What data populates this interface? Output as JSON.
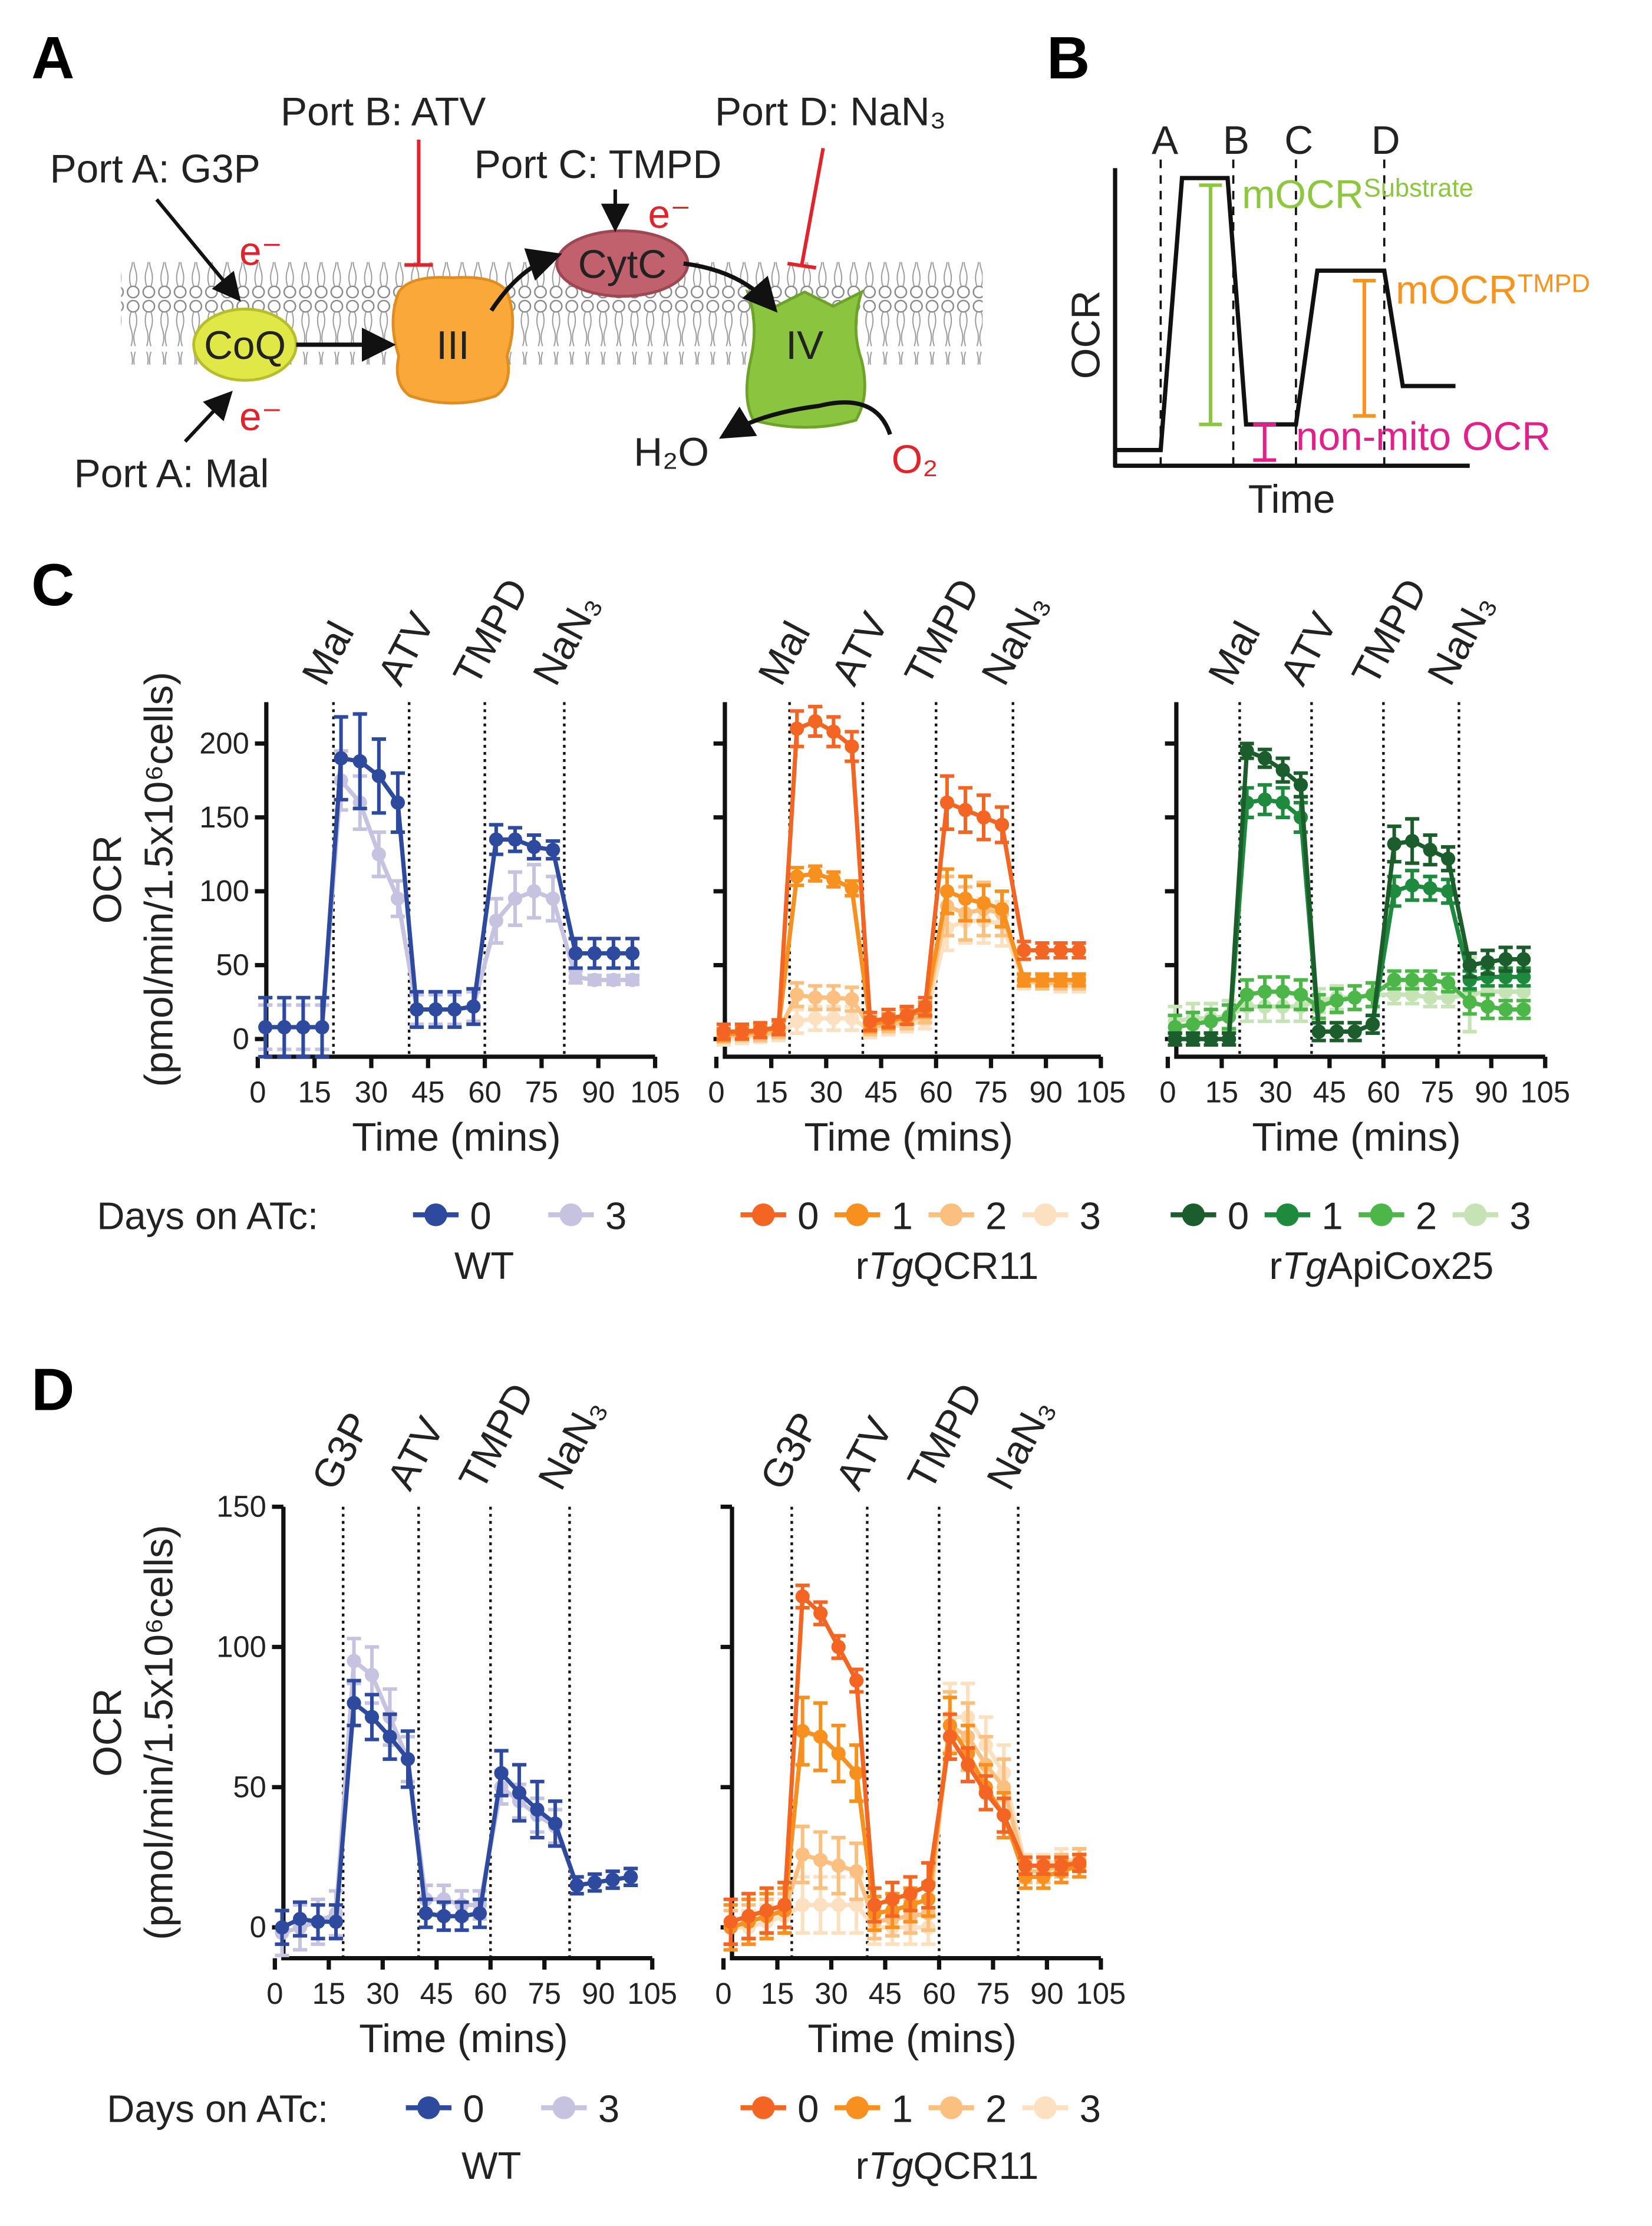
{
  "panel_labels": [
    "A",
    "B",
    "C",
    "D"
  ],
  "diagram_a": {
    "port_a_top": "Port A: G3P",
    "port_b": "Port B: ATV",
    "port_c": "Port C: TMPD",
    "port_d": "Port D: NaN₃",
    "port_a_bottom": "Port A: Mal",
    "electrons": [
      "e⁻",
      "e⁻",
      "e⁻"
    ],
    "complexes": [
      "CoQ",
      "III",
      "CytC",
      "IV"
    ],
    "water": "H₂O",
    "oxygen": "O₂"
  },
  "diagram_b": {
    "injections": [
      "A",
      "B",
      "C",
      "D"
    ],
    "ylabel": "OCR",
    "xlabel": "Time",
    "substrate": {
      "main": "mOCR",
      "sup": "Substrate"
    },
    "tmpd": {
      "main": "mOCR",
      "sup": "TMPD"
    },
    "non_mito": "non-mito OCR"
  },
  "chart_data": [
    {
      "type": "line",
      "ylabel": [
        "OCR",
        "(pmol/min/1.5x10⁶cells)"
      ],
      "xlabel": "Time (mins)",
      "ytick_labels": true,
      "x": [
        2,
        7,
        12,
        17,
        22,
        27,
        32,
        37,
        42,
        47,
        52,
        57,
        63,
        68,
        73,
        78,
        84,
        89,
        94,
        99
      ],
      "xlim": [
        0,
        105
      ],
      "xticks": [
        0,
        15,
        30,
        45,
        60,
        75,
        90,
        105
      ],
      "ylim": [
        -12,
        228
      ],
      "yticks": [
        0,
        50,
        100,
        150,
        200
      ],
      "injections": [
        {
          "label": "Mal",
          "x": 20
        },
        {
          "label": "ATV",
          "x": 40
        },
        {
          "label": "TMPD",
          "x": 60
        },
        {
          "label": "NaN₃",
          "x": 81
        }
      ],
      "legend_title": "Days on ATc:",
      "group_label": [
        "WT"
      ],
      "series": [
        {
          "name": "0",
          "color": "#2e4a9e",
          "values": [
            8,
            8,
            8,
            8,
            190,
            188,
            178,
            160,
            20,
            20,
            20,
            22,
            135,
            135,
            130,
            128,
            58,
            58,
            58,
            58
          ],
          "errors": [
            20,
            20,
            20,
            20,
            28,
            32,
            25,
            20,
            12,
            12,
            12,
            12,
            10,
            8,
            8,
            6,
            10,
            10,
            10,
            10
          ]
        },
        {
          "name": "3",
          "color": "#c5c3e0",
          "values": [
            8,
            8,
            8,
            8,
            175,
            160,
            125,
            95,
            20,
            20,
            20,
            22,
            80,
            95,
            100,
            95,
            42,
            40,
            40,
            40
          ],
          "errors": [
            15,
            15,
            15,
            15,
            20,
            18,
            15,
            12,
            10,
            10,
            10,
            10,
            15,
            18,
            18,
            15,
            4,
            3,
            3,
            3
          ]
        }
      ]
    },
    {
      "type": "line",
      "xlabel": "Time (mins)",
      "ytick_labels": false,
      "x": [
        2,
        7,
        12,
        17,
        22,
        27,
        32,
        37,
        42,
        47,
        52,
        57,
        63,
        68,
        73,
        78,
        84,
        89,
        94,
        99
      ],
      "xlim": [
        0,
        105
      ],
      "xticks": [
        0,
        15,
        30,
        45,
        60,
        75,
        90,
        105
      ],
      "ylim": [
        -12,
        228
      ],
      "yticks": [
        0,
        50,
        100,
        150,
        200
      ],
      "injections": [
        {
          "label": "Mal",
          "x": 20
        },
        {
          "label": "ATV",
          "x": 40
        },
        {
          "label": "TMPD",
          "x": 60
        },
        {
          "label": "NaN₃",
          "x": 81
        }
      ],
      "group_label": [
        "r",
        "Tg",
        "QCR11"
      ],
      "series": [
        {
          "name": "0",
          "color": "#f26522",
          "values": [
            5,
            5,
            6,
            8,
            210,
            215,
            208,
            198,
            12,
            14,
            16,
            22,
            160,
            155,
            150,
            145,
            60,
            60,
            60,
            60
          ],
          "errors": [
            5,
            5,
            5,
            5,
            12,
            10,
            10,
            10,
            6,
            6,
            6,
            6,
            18,
            15,
            15,
            12,
            6,
            5,
            5,
            5
          ]
        },
        {
          "name": "1",
          "color": "#f7901e",
          "values": [
            3,
            4,
            5,
            8,
            110,
            112,
            108,
            102,
            10,
            12,
            15,
            20,
            100,
            95,
            92,
            88,
            40,
            40,
            40,
            40
          ],
          "errors": [
            4,
            4,
            4,
            4,
            6,
            5,
            5,
            5,
            5,
            5,
            5,
            5,
            15,
            15,
            12,
            12,
            4,
            4,
            4,
            4
          ]
        },
        {
          "name": "2",
          "color": "#fbbf7f",
          "values": [
            2,
            3,
            3,
            5,
            30,
            28,
            28,
            27,
            8,
            10,
            12,
            16,
            90,
            85,
            88,
            85,
            40,
            38,
            38,
            38
          ],
          "errors": [
            4,
            4,
            4,
            4,
            8,
            8,
            8,
            8,
            5,
            5,
            5,
            5,
            20,
            18,
            18,
            15,
            4,
            4,
            4,
            4
          ]
        },
        {
          "name": "3",
          "color": "#fde0c0",
          "values": [
            0,
            1,
            2,
            3,
            12,
            14,
            14,
            14,
            6,
            8,
            10,
            12,
            75,
            80,
            80,
            78,
            38,
            38,
            36,
            36
          ],
          "errors": [
            4,
            4,
            4,
            4,
            8,
            8,
            8,
            8,
            5,
            5,
            5,
            5,
            15,
            15,
            15,
            15,
            4,
            4,
            4,
            4
          ]
        }
      ]
    },
    {
      "type": "line",
      "xlabel": "Time (mins)",
      "ytick_labels": false,
      "x": [
        2,
        7,
        12,
        17,
        22,
        27,
        32,
        37,
        42,
        47,
        52,
        57,
        63,
        68,
        73,
        78,
        84,
        89,
        94,
        99
      ],
      "xlim": [
        0,
        105
      ],
      "xticks": [
        0,
        15,
        30,
        45,
        60,
        75,
        90,
        105
      ],
      "ylim": [
        -12,
        228
      ],
      "yticks": [
        0,
        50,
        100,
        150,
        200
      ],
      "injections": [
        {
          "label": "Mal",
          "x": 20
        },
        {
          "label": "ATV",
          "x": 40
        },
        {
          "label": "TMPD",
          "x": 60
        },
        {
          "label": "NaN₃",
          "x": 81
        }
      ],
      "group_label": [
        "r",
        "Tg",
        "ApiCox25"
      ],
      "series": [
        {
          "name": "0",
          "color": "#1b5e2b",
          "values": [
            0,
            0,
            0,
            0,
            195,
            190,
            182,
            172,
            5,
            5,
            5,
            10,
            132,
            134,
            128,
            122,
            50,
            52,
            54,
            54
          ],
          "errors": [
            4,
            4,
            4,
            4,
            5,
            6,
            8,
            8,
            6,
            6,
            6,
            6,
            12,
            15,
            10,
            8,
            8,
            8,
            8,
            8
          ]
        },
        {
          "name": "1",
          "color": "#1e8a3e",
          "values": [
            0,
            0,
            0,
            0,
            160,
            162,
            160,
            150,
            5,
            5,
            5,
            10,
            100,
            104,
            102,
            100,
            40,
            42,
            42,
            42
          ],
          "errors": [
            4,
            4,
            4,
            4,
            10,
            10,
            10,
            10,
            6,
            6,
            6,
            6,
            10,
            10,
            8,
            8,
            6,
            6,
            6,
            6
          ]
        },
        {
          "name": "2",
          "color": "#4cb748",
          "values": [
            8,
            10,
            12,
            15,
            30,
            32,
            32,
            30,
            22,
            26,
            28,
            30,
            40,
            40,
            40,
            38,
            25,
            22,
            20,
            20
          ],
          "errors": [
            8,
            8,
            8,
            8,
            10,
            10,
            10,
            10,
            8,
            8,
            8,
            8,
            6,
            6,
            6,
            6,
            8,
            8,
            6,
            6
          ]
        },
        {
          "name": "3",
          "color": "#c5e3b5",
          "values": [
            12,
            14,
            14,
            16,
            22,
            22,
            22,
            22,
            26,
            28,
            28,
            30,
            30,
            30,
            28,
            28,
            30,
            32,
            32,
            32
          ],
          "errors": [
            10,
            10,
            10,
            10,
            10,
            10,
            10,
            10,
            8,
            8,
            8,
            8,
            6,
            6,
            6,
            6,
            25,
            10,
            10,
            10
          ]
        }
      ]
    },
    {
      "type": "line",
      "ylabel": [
        "OCR",
        "(pmol/min/1.5x10⁶cells)"
      ],
      "xlabel": "Time (mins)",
      "ytick_labels": true,
      "x": [
        2,
        7,
        12,
        17,
        22,
        27,
        32,
        37,
        42,
        47,
        52,
        57,
        63,
        68,
        73,
        78,
        84,
        89,
        94,
        99
      ],
      "xlim": [
        0,
        105
      ],
      "xticks": [
        0,
        15,
        30,
        45,
        60,
        75,
        90,
        105
      ],
      "ylim": [
        -11,
        150
      ],
      "yticks": [
        0,
        50,
        100,
        150
      ],
      "injections": [
        {
          "label": "G3P",
          "x": 19
        },
        {
          "label": "ATV",
          "x": 40
        },
        {
          "label": "TMPD",
          "x": 60
        },
        {
          "label": "NaN₃",
          "x": 82
        }
      ],
      "legend_title": "Days on ATc:",
      "group_label": [
        "WT"
      ],
      "series": [
        {
          "name": "0",
          "color": "#2e4a9e",
          "values": [
            0,
            3,
            2,
            2,
            80,
            75,
            68,
            60,
            5,
            4,
            4,
            5,
            55,
            48,
            42,
            37,
            15,
            16,
            17,
            18
          ],
          "errors": [
            6,
            6,
            6,
            6,
            8,
            8,
            8,
            10,
            5,
            5,
            5,
            5,
            8,
            10,
            10,
            8,
            3,
            3,
            3,
            3
          ]
        },
        {
          "name": "3",
          "color": "#c5c3e0",
          "values": [
            -2,
            0,
            2,
            5,
            95,
            90,
            75,
            60,
            10,
            10,
            8,
            8,
            50,
            45,
            40,
            36,
            15,
            16,
            17,
            18
          ],
          "errors": [
            8,
            8,
            8,
            8,
            8,
            10,
            10,
            8,
            5,
            5,
            5,
            5,
            6,
            6,
            6,
            6,
            3,
            3,
            3,
            3
          ]
        }
      ]
    },
    {
      "type": "line",
      "xlabel": "Time (mins)",
      "ytick_labels": false,
      "x": [
        2,
        7,
        12,
        17,
        22,
        27,
        32,
        37,
        42,
        47,
        52,
        57,
        63,
        68,
        73,
        78,
        84,
        89,
        94,
        99
      ],
      "xlim": [
        0,
        105
      ],
      "xticks": [
        0,
        15,
        30,
        45,
        60,
        75,
        90,
        105
      ],
      "ylim": [
        -11,
        150
      ],
      "yticks": [
        0,
        50,
        100,
        150
      ],
      "injections": [
        {
          "label": "G3P",
          "x": 19
        },
        {
          "label": "ATV",
          "x": 40
        },
        {
          "label": "TMPD",
          "x": 60
        },
        {
          "label": "NaN₃",
          "x": 82
        }
      ],
      "group_label": [
        "r",
        "Tg",
        "QCR11"
      ],
      "series": [
        {
          "name": "0",
          "color": "#f26522",
          "values": [
            2,
            4,
            6,
            8,
            118,
            112,
            100,
            88,
            8,
            10,
            12,
            15,
            68,
            58,
            48,
            40,
            22,
            22,
            22,
            23
          ],
          "errors": [
            8,
            8,
            8,
            8,
            4,
            4,
            4,
            4,
            6,
            6,
            6,
            8,
            8,
            6,
            6,
            6,
            3,
            3,
            3,
            3
          ]
        },
        {
          "name": "1",
          "color": "#f7901e",
          "values": [
            0,
            2,
            4,
            6,
            70,
            68,
            62,
            55,
            5,
            6,
            8,
            10,
            72,
            62,
            50,
            40,
            18,
            18,
            20,
            22
          ],
          "errors": [
            8,
            8,
            8,
            8,
            12,
            12,
            10,
            10,
            6,
            6,
            6,
            6,
            10,
            10,
            8,
            8,
            4,
            4,
            4,
            4
          ]
        },
        {
          "name": "2",
          "color": "#fbbf7f",
          "values": [
            0,
            2,
            4,
            6,
            26,
            24,
            22,
            20,
            2,
            3,
            4,
            5,
            72,
            68,
            58,
            50,
            20,
            20,
            22,
            24
          ],
          "errors": [
            6,
            6,
            6,
            6,
            10,
            10,
            10,
            10,
            6,
            6,
            6,
            6,
            12,
            12,
            10,
            10,
            4,
            4,
            4,
            4
          ]
        },
        {
          "name": "3",
          "color": "#fde0c0",
          "values": [
            0,
            0,
            2,
            4,
            8,
            8,
            8,
            8,
            0,
            0,
            0,
            0,
            75,
            75,
            65,
            55,
            22,
            22,
            24,
            24
          ],
          "errors": [
            6,
            6,
            6,
            6,
            10,
            10,
            10,
            10,
            6,
            6,
            6,
            6,
            12,
            12,
            10,
            10,
            4,
            4,
            4,
            4
          ]
        }
      ]
    }
  ]
}
